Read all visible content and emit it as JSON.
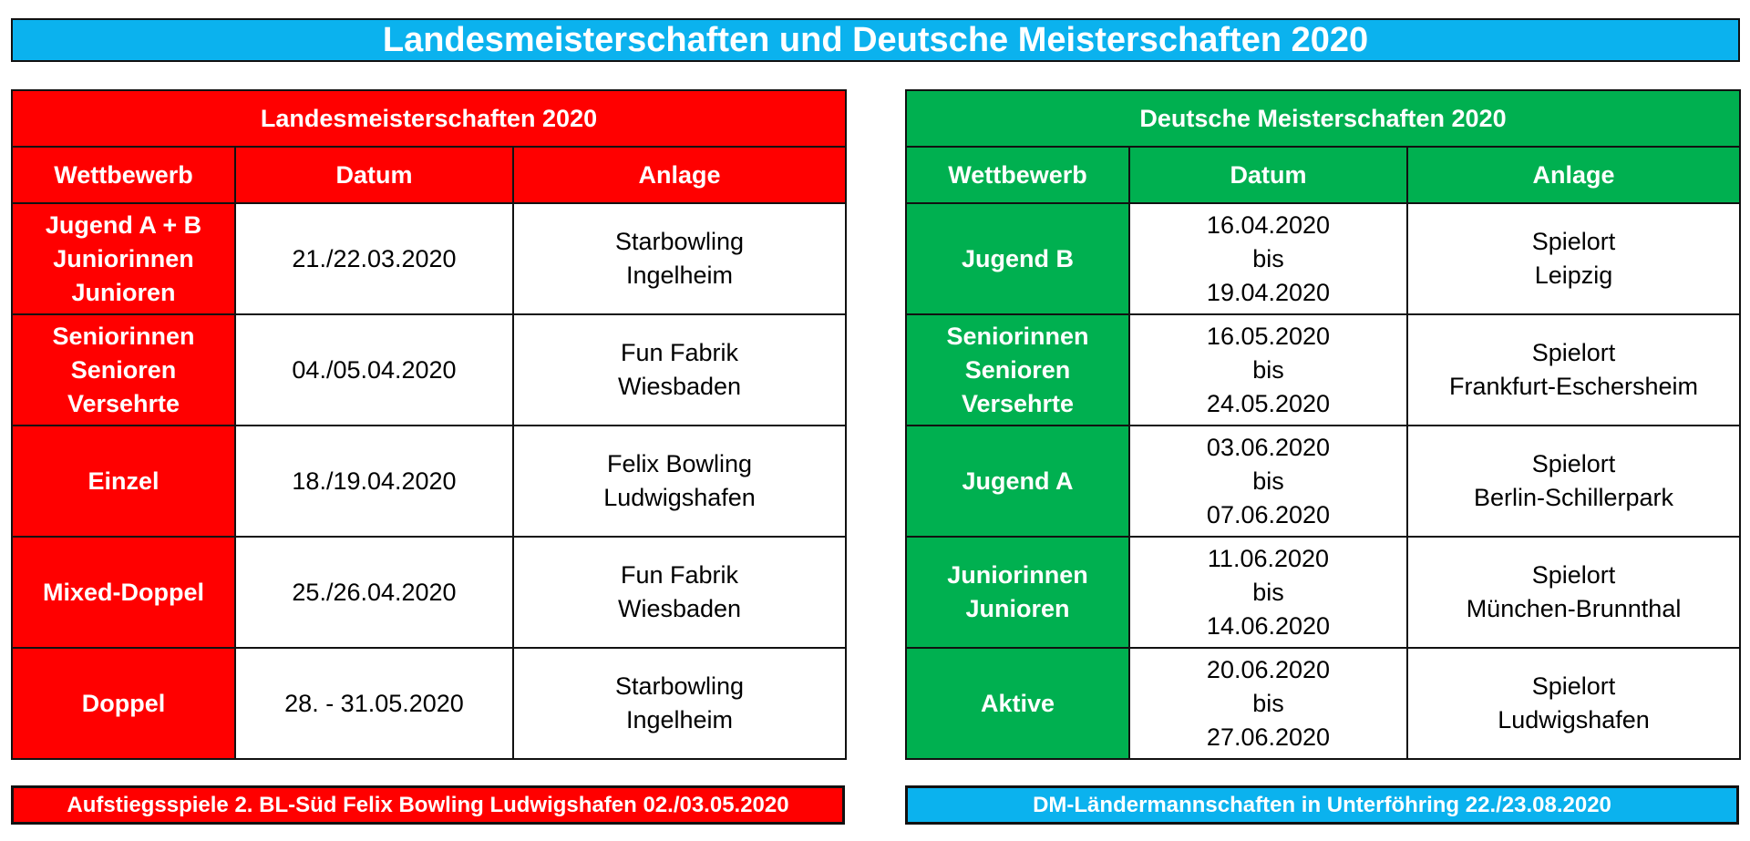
{
  "banner": {
    "title": "Landesmeisterschaften und Deutsche Meisterschaften 2020"
  },
  "colors": {
    "banner": "#0bb2ee",
    "lm": "#ff0000",
    "dm": "#00b050",
    "footer_right": "#0bb2ee"
  },
  "lm": {
    "title": "Landesmeisterschaften 2020",
    "headers": [
      "Wettbewerb",
      "Datum",
      "Anlage"
    ],
    "rows": [
      {
        "wettbewerb": "Jugend A + B\nJuniorinnen\nJunioren",
        "datum": "21./22.03.2020",
        "anlage": "Starbowling\nIngelheim"
      },
      {
        "wettbewerb": "Seniorinnen\nSenioren\nVersehrte",
        "datum": "04./05.04.2020",
        "anlage": "Fun Fabrik\nWiesbaden"
      },
      {
        "wettbewerb": "Einzel",
        "datum": "18./19.04.2020",
        "anlage": "Felix Bowling\nLudwigshafen"
      },
      {
        "wettbewerb": "Mixed-Doppel",
        "datum": "25./26.04.2020",
        "anlage": "Fun Fabrik\nWiesbaden"
      },
      {
        "wettbewerb": "Doppel",
        "datum": "28. - 31.05.2020",
        "anlage": "Starbowling\nIngelheim"
      }
    ]
  },
  "dm": {
    "title": "Deutsche Meisterschaften 2020",
    "headers": [
      "Wettbewerb",
      "Datum",
      "Anlage"
    ],
    "rows": [
      {
        "wettbewerb": "Jugend B",
        "datum": "16.04.2020\nbis\n19.04.2020",
        "anlage": "Spielort\nLeipzig"
      },
      {
        "wettbewerb": "Seniorinnen\nSenioren\nVersehrte",
        "datum": "16.05.2020\nbis\n24.05.2020",
        "anlage": "Spielort\nFrankfurt-Eschersheim"
      },
      {
        "wettbewerb": "Jugend A",
        "datum": "03.06.2020\nbis\n07.06.2020",
        "anlage": "Spielort\nBerlin-Schillerpark"
      },
      {
        "wettbewerb": "Juniorinnen\nJunioren",
        "datum": "11.06.2020\nbis\n14.06.2020",
        "anlage": "Spielort\nMünchen-Brunnthal"
      },
      {
        "wettbewerb": "Aktive",
        "datum": "20.06.2020\nbis\n27.06.2020",
        "anlage": "Spielort\nLudwigshafen"
      }
    ]
  },
  "footer": {
    "left": "Aufstiegsspiele 2. BL-Süd Felix Bowling Ludwigshafen 02./03.05.2020",
    "right": "DM-Ländermannschaften in Unterföhring 22./23.08.2020"
  }
}
